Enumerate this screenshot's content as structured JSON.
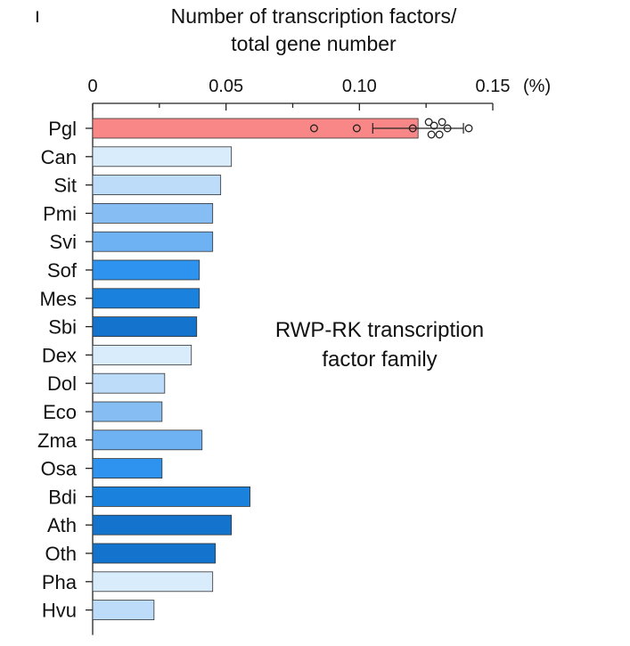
{
  "panel_mark": "ı",
  "chart_data": {
    "type": "bar",
    "orientation": "horizontal",
    "title_lines": [
      "Number of transcription factors/",
      "total gene number"
    ],
    "x_unit_label": "(%)",
    "xlim": [
      0,
      0.15
    ],
    "x_ticks": [
      0,
      0.05,
      0.1,
      0.15
    ],
    "x_tick_labels": [
      "0",
      "0.05",
      "0.10",
      "0.15"
    ],
    "x_minor_ticks": [
      0.025,
      0.075,
      0.125
    ],
    "annotation_lines": [
      "RWP-RK transcription",
      "factor family"
    ],
    "categories": [
      "Pgl",
      "Can",
      "Sit",
      "Pmi",
      "Svi",
      "Sof",
      "Mes",
      "Sbi",
      "Dex",
      "Dol",
      "Eco",
      "Zma",
      "Osa",
      "Bdi",
      "Ath",
      "Oth",
      "Pha",
      "Hvu"
    ],
    "values": [
      0.122,
      0.052,
      0.048,
      0.045,
      0.045,
      0.04,
      0.04,
      0.039,
      0.037,
      0.027,
      0.026,
      0.041,
      0.026,
      0.059,
      0.052,
      0.046,
      0.045,
      0.023
    ],
    "colors": [
      "#f98787",
      "#d9ecfc",
      "#bcdcfa",
      "#86bdf3",
      "#6fb2f4",
      "#2d93ee",
      "#1a82dc",
      "#1473cc",
      "#d9ecfc",
      "#bcdcfa",
      "#86bdf3",
      "#6fb2f4",
      "#2d93ee",
      "#1a82dc",
      "#1473cc",
      "#1473cc",
      "#d9ecfc",
      "#bcdcfa"
    ],
    "pgl_points": [
      0.083,
      0.099,
      0.12,
      0.126,
      0.127,
      0.128,
      0.13,
      0.131,
      0.133,
      0.141
    ],
    "pgl_error": [
      0.105,
      0.139
    ],
    "grid": false,
    "legend": "none"
  }
}
